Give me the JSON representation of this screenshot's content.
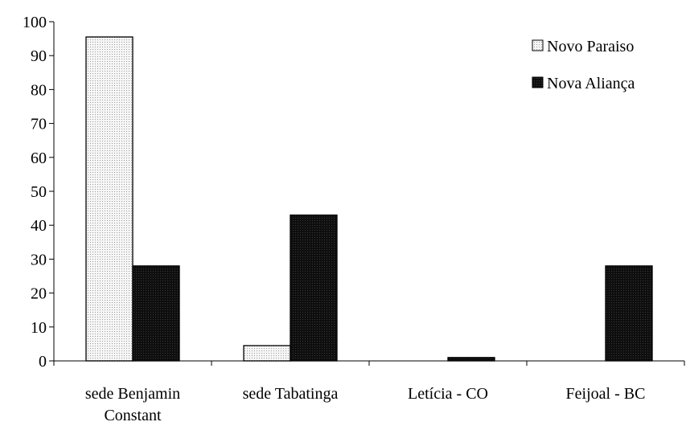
{
  "chart_data": {
    "type": "bar",
    "title": "",
    "xlabel": "",
    "ylabel": "",
    "ylim": [
      0,
      100
    ],
    "yticks": [
      0,
      10,
      20,
      30,
      40,
      50,
      60,
      70,
      80,
      90,
      100
    ],
    "categories": [
      [
        "sede Benjamin",
        "Constant"
      ],
      [
        "sede Tabatinga"
      ],
      [
        "Letícia - CO"
      ],
      [
        "Feijoal - BC"
      ]
    ],
    "series": [
      {
        "name": "Novo Paraiso",
        "values": [
          95.5,
          4.5,
          0,
          0
        ],
        "fill": "dotted-light"
      },
      {
        "name": "Nova Aliança",
        "values": [
          28,
          43,
          1,
          28
        ],
        "fill": "dotted-dark"
      }
    ],
    "legend_position": "top-right",
    "grid": false,
    "colors": {
      "light": "#f4f4f4",
      "dark": "#111111",
      "axis": "#000000"
    }
  }
}
